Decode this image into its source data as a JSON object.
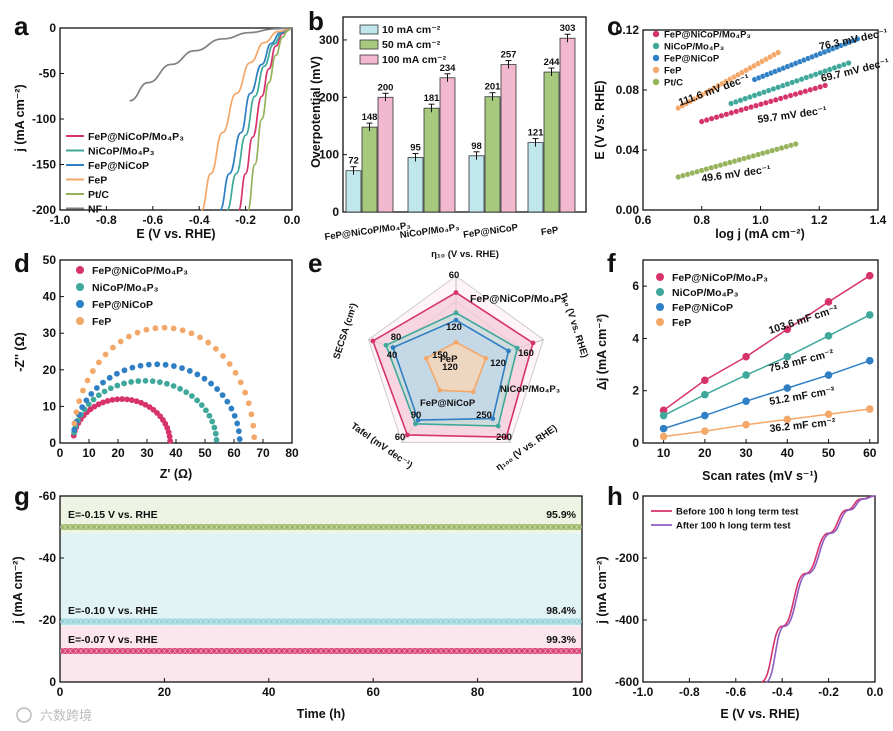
{
  "watermark": "六数跨境",
  "colors": {
    "fep_nicop_mo4p3": "#d6336c",
    "nicop_mo4p3": "#3fa89b",
    "fep_nicop": "#2f7fc4",
    "fep": "#f3a86a",
    "ptc": "#95b35a",
    "nf": "#808080",
    "bar10": "#bfe7ec",
    "bar50": "#a6c97e",
    "bar100": "#f2b8cf"
  },
  "chart_data": [
    {
      "panel": "a",
      "type": "line",
      "xlabel": "E (V vs. RHE)",
      "ylabel": "j (mA cm⁻²)",
      "xlim": [
        -1.0,
        0.0
      ],
      "ylim": [
        -200,
        0
      ],
      "xticks": [
        "-1.0",
        "-0.8",
        "-0.6",
        "-0.4",
        "-0.2",
        "0.0"
      ],
      "yticks": [
        "0",
        "-50",
        "-100",
        "-150",
        "-200"
      ],
      "legend": [
        "FeP@NiCoP/Mo₄P₃",
        "NiCoP/Mo₄P₃",
        "FeP@NiCoP",
        "FeP",
        "Pt/C",
        "NF"
      ],
      "series": [
        {
          "name": "FeP@NiCoP/Mo₄P₃",
          "x": [
            -0.23,
            -0.2,
            -0.17,
            -0.13,
            -0.1,
            -0.07,
            -0.04,
            0.0
          ],
          "y": [
            -200,
            -160,
            -120,
            -75,
            -45,
            -20,
            -6,
            0
          ]
        },
        {
          "name": "NiCoP/Mo₄P₃",
          "x": [
            -0.28,
            -0.24,
            -0.2,
            -0.16,
            -0.12,
            -0.08,
            -0.04,
            0.0
          ],
          "y": [
            -200,
            -160,
            -118,
            -75,
            -42,
            -18,
            -5,
            0
          ]
        },
        {
          "name": "FeP@NiCoP",
          "x": [
            -0.31,
            -0.27,
            -0.22,
            -0.18,
            -0.13,
            -0.09,
            -0.05,
            0.0
          ],
          "y": [
            -200,
            -160,
            -115,
            -72,
            -40,
            -17,
            -5,
            0
          ]
        },
        {
          "name": "FeP",
          "x": [
            -0.39,
            -0.35,
            -0.3,
            -0.24,
            -0.18,
            -0.12,
            -0.06,
            0.0
          ],
          "y": [
            -200,
            -160,
            -115,
            -72,
            -38,
            -16,
            -4,
            0
          ]
        },
        {
          "name": "Pt/C",
          "x": [
            -0.19,
            -0.16,
            -0.13,
            -0.1,
            -0.07,
            -0.04,
            -0.02,
            0.0
          ],
          "y": [
            -200,
            -150,
            -100,
            -60,
            -30,
            -10,
            -3,
            0
          ]
        },
        {
          "name": "NF",
          "x": [
            -0.7,
            -0.62,
            -0.52,
            -0.42,
            -0.3,
            -0.18,
            -0.08,
            0.0
          ],
          "y": [
            -80,
            -60,
            -40,
            -25,
            -12,
            -5,
            -1,
            0
          ]
        }
      ]
    },
    {
      "panel": "b",
      "type": "bar",
      "ylabel": "Overpotential (mV)",
      "xlabel": "η₁₀ (V vs. RHE)",
      "ylim": [
        0,
        340
      ],
      "yticks": [
        "0",
        "100",
        "200",
        "300"
      ],
      "categories": [
        "FeP@NiCoP/Mo₄P₃",
        "NiCoP/Mo₄P₃",
        "FeP@NiCoP",
        "FeP"
      ],
      "series": [
        {
          "name": "10 mA cm⁻²",
          "values": [
            72,
            95,
            98,
            121
          ]
        },
        {
          "name": "50 mA cm⁻²",
          "values": [
            148,
            181,
            201,
            244
          ]
        },
        {
          "name": "100 mA cm⁻²",
          "values": [
            200,
            234,
            257,
            303
          ]
        }
      ],
      "value_labels": [
        [
          "72",
          "148",
          "200"
        ],
        [
          "95",
          "181",
          "234"
        ],
        [
          "98",
          "201",
          "257"
        ],
        [
          "121",
          "244",
          "303"
        ]
      ]
    },
    {
      "panel": "c",
      "type": "scatter",
      "xlabel": "log j (mA cm⁻²)",
      "ylabel": "E (V vs. RHE)",
      "xlim": [
        0.6,
        1.4
      ],
      "ylim": [
        0.0,
        0.12
      ],
      "xticks": [
        "0.6",
        "0.8",
        "1.0",
        "1.2",
        "1.4"
      ],
      "yticks": [
        "0.00",
        "0.04",
        "0.08",
        "0.12"
      ],
      "legend": [
        "FeP@NiCoP/Mo₄P₃",
        "NiCoP/Mo₄P₃",
        "FeP@NiCoP",
        "FeP",
        "Pt/C"
      ],
      "series": [
        {
          "name": "FeP@NiCoP/Mo₄P₃",
          "x0": 0.8,
          "x1": 1.22,
          "y0": 0.059,
          "y1": 0.083,
          "label": "59.7 mV dec⁻¹"
        },
        {
          "name": "NiCoP/Mo₄P₃",
          "x0": 0.9,
          "x1": 1.3,
          "y0": 0.071,
          "y1": 0.098,
          "label": "69.7 mV dec⁻¹"
        },
        {
          "name": "FeP@NiCoP",
          "x0": 0.98,
          "x1": 1.33,
          "y0": 0.087,
          "y1": 0.114,
          "label": "76.3 mV dec⁻¹"
        },
        {
          "name": "FeP",
          "x0": 0.72,
          "x1": 1.06,
          "y0": 0.068,
          "y1": 0.105,
          "label": "111.6 mV dec⁻¹"
        },
        {
          "name": "Pt/C",
          "x0": 0.72,
          "x1": 1.12,
          "y0": 0.022,
          "y1": 0.044,
          "label": "49.6 mV dec⁻¹"
        }
      ]
    },
    {
      "panel": "d",
      "type": "scatter",
      "xlabel": "Z' (Ω)",
      "ylabel": "-Z'' (Ω)",
      "xlim": [
        0,
        80
      ],
      "ylim": [
        0,
        50
      ],
      "xticks": [
        "0",
        "10",
        "20",
        "30",
        "40",
        "50",
        "60",
        "70",
        "80"
      ],
      "yticks": [
        "0",
        "10",
        "20",
        "30",
        "40",
        "50"
      ],
      "legend": [
        "FeP@NiCoP/Mo₄P₃",
        "NiCoP/Mo₄P₃",
        "FeP@NiCoP",
        "FeP"
      ],
      "series": [
        {
          "name": "FeP@NiCoP/Mo₄P₃",
          "r0": 2.5,
          "r1": 32,
          "peak": 12
        },
        {
          "name": "NiCoP/Mo₄P₃",
          "r0": 2.5,
          "r1": 48,
          "peak": 17
        },
        {
          "name": "FeP@NiCoP",
          "r0": 2.5,
          "r1": 56,
          "peak": 21.5
        },
        {
          "name": "FeP",
          "r0": 2.5,
          "r1": 61,
          "peak": 31.5
        }
      ]
    },
    {
      "panel": "e",
      "type": "radar",
      "axes": [
        "SECSA (cm²)",
        "η₁₀ (V vs. RHE)",
        "η₁₀₀ (V vs. RHE)",
        "Tafel (mV dec⁻¹)"
      ],
      "ring_labels": [
        "60",
        "120",
        "40",
        "80",
        "160",
        "120",
        "200",
        "250",
        "60",
        "90",
        "120",
        "150"
      ],
      "series_labels": [
        "FeP@NiCoP/Mo₄P₃",
        "NiCoP/Mo₄P₃",
        "FeP@NiCoP",
        "FeP"
      ]
    },
    {
      "panel": "f",
      "type": "scatter",
      "xlabel": "Scan rates (mV s⁻¹)",
      "ylabel": "Δj (mA cm⁻²)",
      "xlim": [
        5,
        62
      ],
      "ylim": [
        0,
        7
      ],
      "xticks": [
        "10",
        "20",
        "30",
        "40",
        "50",
        "60"
      ],
      "yticks": [
        "0",
        "2",
        "4",
        "6"
      ],
      "legend": [
        "FeP@NiCoP/Mo₄P₃",
        "NiCoP/Mo₄P₃",
        "FeP@NiCoP",
        "FeP"
      ],
      "x": [
        10,
        20,
        30,
        40,
        50,
        60
      ],
      "series": [
        {
          "name": "FeP@NiCoP/Mo₄P₃",
          "values": [
            1.25,
            2.4,
            3.3,
            4.35,
            5.4,
            6.4
          ],
          "label": "103.6 mF cm⁻²"
        },
        {
          "name": "NiCoP/Mo₄P₃",
          "values": [
            1.05,
            1.85,
            2.6,
            3.3,
            4.1,
            4.9
          ],
          "label": "75.8 mF cm⁻²"
        },
        {
          "name": "FeP@NiCoP",
          "values": [
            0.55,
            1.05,
            1.6,
            2.1,
            2.6,
            3.15
          ],
          "label": "51.2 mF cm⁻²"
        },
        {
          "name": "FeP",
          "values": [
            0.25,
            0.45,
            0.7,
            0.9,
            1.1,
            1.3
          ],
          "label": "36.2 mF cm⁻²"
        }
      ]
    },
    {
      "panel": "g",
      "type": "line",
      "xlabel": "Time (h)",
      "ylabel": "j (mA cm⁻²)",
      "xlim": [
        0,
        100
      ],
      "ylim": [
        0,
        -60
      ],
      "xticks": [
        "0",
        "20",
        "40",
        "60",
        "80",
        "100"
      ],
      "yticks": [
        "0",
        "-20",
        "-40",
        "-60"
      ],
      "series": [
        {
          "name": "E=-0.15 V vs. RHE",
          "value": -50,
          "retention": "95.9%"
        },
        {
          "name": "E=-0.10 V vs. RHE",
          "value": -19.5,
          "retention": "98.4%"
        },
        {
          "name": "E=-0.07 V vs. RHE",
          "value": -10,
          "retention": "99.3%"
        }
      ]
    },
    {
      "panel": "h",
      "type": "line",
      "xlabel": "E (V vs. RHE)",
      "ylabel": "j (mA cm⁻²)",
      "xlim": [
        -1.0,
        0.0
      ],
      "ylim": [
        -600,
        0
      ],
      "xticks": [
        "-1.0",
        "-0.8",
        "-0.6",
        "-0.4",
        "-0.2",
        "0.0"
      ],
      "yticks": [
        "0",
        "-200",
        "-400",
        "-600"
      ],
      "legend": [
        "Before 100 h long term test",
        "After 100 h long term test"
      ],
      "series": [
        {
          "name": "Before 100 h long term test",
          "x": [
            -0.49,
            -0.4,
            -0.3,
            -0.2,
            -0.12,
            -0.06,
            0.0
          ],
          "y": [
            -600,
            -420,
            -250,
            -120,
            -45,
            -10,
            0
          ]
        },
        {
          "name": "After 100 h long term test",
          "x": [
            -0.47,
            -0.39,
            -0.29,
            -0.19,
            -0.11,
            -0.05,
            0.0
          ],
          "y": [
            -600,
            -420,
            -250,
            -120,
            -45,
            -10,
            0
          ]
        }
      ]
    }
  ],
  "panel_letters": [
    "a",
    "b",
    "c",
    "d",
    "e",
    "f",
    "g",
    "h"
  ]
}
